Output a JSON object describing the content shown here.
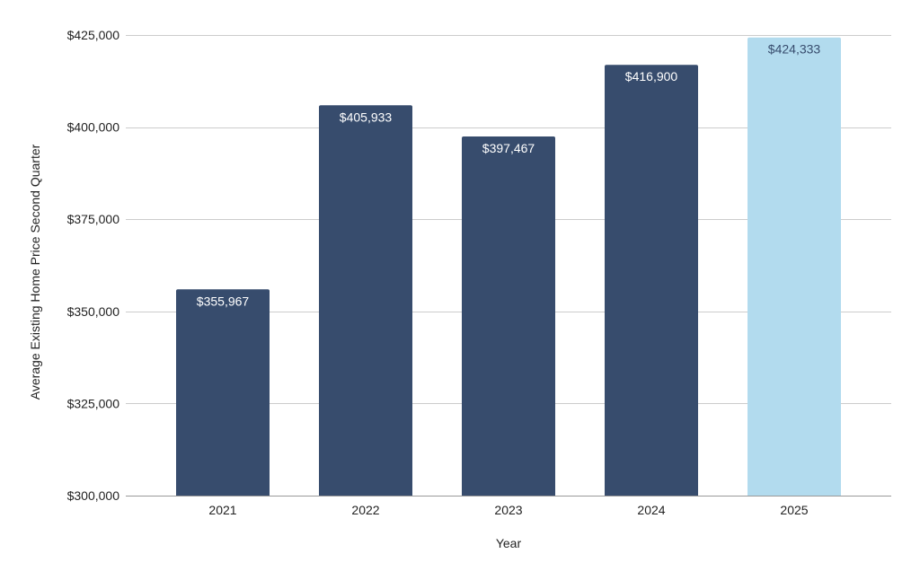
{
  "chart_data": {
    "type": "bar",
    "categories": [
      "2021",
      "2022",
      "2023",
      "2024",
      "2025"
    ],
    "values": [
      355967,
      405933,
      397467,
      416900,
      424333
    ],
    "value_labels": [
      "$355,967",
      "$405,933",
      "$397,467",
      "$416,900",
      "$424,333"
    ],
    "title": "",
    "xlabel": "Year",
    "ylabel": "Average Existing Home Price Second Quarter",
    "ylim": [
      300000,
      425000
    ],
    "yticks": [
      300000,
      325000,
      350000,
      375000,
      400000,
      425000
    ],
    "ytick_labels": [
      "$300,000",
      "$325,000",
      "$350,000",
      "$375,000",
      "$400,000",
      "$425,000"
    ],
    "grid": true,
    "legend": "none",
    "colors": {
      "default_bar": "#374c6d",
      "highlight_bar": "#b2dbee",
      "default_label": "#ffffff",
      "highlight_label": "#374c6d"
    },
    "highlight_index": 4
  }
}
